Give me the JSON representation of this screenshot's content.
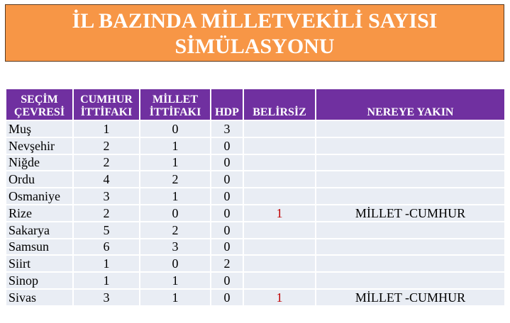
{
  "title": {
    "line1": "İL BAZINDA MİLLETVEKİLİ SAYISI",
    "line2": "SİMÜLASYONU"
  },
  "table": {
    "headers": [
      [
        "SEÇİM",
        "ÇEVRESİ"
      ],
      [
        "CUMHUR",
        "İTTİFAKI"
      ],
      [
        "MİLLET",
        "İTTİFAKI"
      ],
      [
        "",
        "HDP"
      ],
      [
        "",
        "BELİRSİZ"
      ],
      [
        "",
        "NEREYE YAKIN"
      ]
    ],
    "rows": [
      [
        "Muş",
        "1",
        "0",
        "3",
        "",
        ""
      ],
      [
        "Nevşehir",
        "2",
        "1",
        "0",
        "",
        ""
      ],
      [
        "Niğde",
        "2",
        "1",
        "0",
        "",
        ""
      ],
      [
        "Ordu",
        "4",
        "2",
        "0",
        "",
        ""
      ],
      [
        "Osmaniye",
        "3",
        "1",
        "0",
        "",
        ""
      ],
      [
        "Rize",
        "2",
        "0",
        "0",
        "1",
        "MİLLET -CUMHUR"
      ],
      [
        "Sakarya",
        "5",
        "2",
        "0",
        "",
        ""
      ],
      [
        "Samsun",
        "6",
        "3",
        "0",
        "",
        ""
      ],
      [
        "Siirt",
        "1",
        "0",
        "2",
        "",
        ""
      ],
      [
        "Sinop",
        "1",
        "1",
        "0",
        "",
        ""
      ],
      [
        "Sivas",
        "3",
        "1",
        "0",
        "1",
        "MİLLET -CUMHUR"
      ]
    ]
  },
  "colors": {
    "title_bg": "#f79646",
    "header_bg": "#7030a0",
    "row_bg": "#e9edf4",
    "belirsiz_text": "#c00000"
  }
}
